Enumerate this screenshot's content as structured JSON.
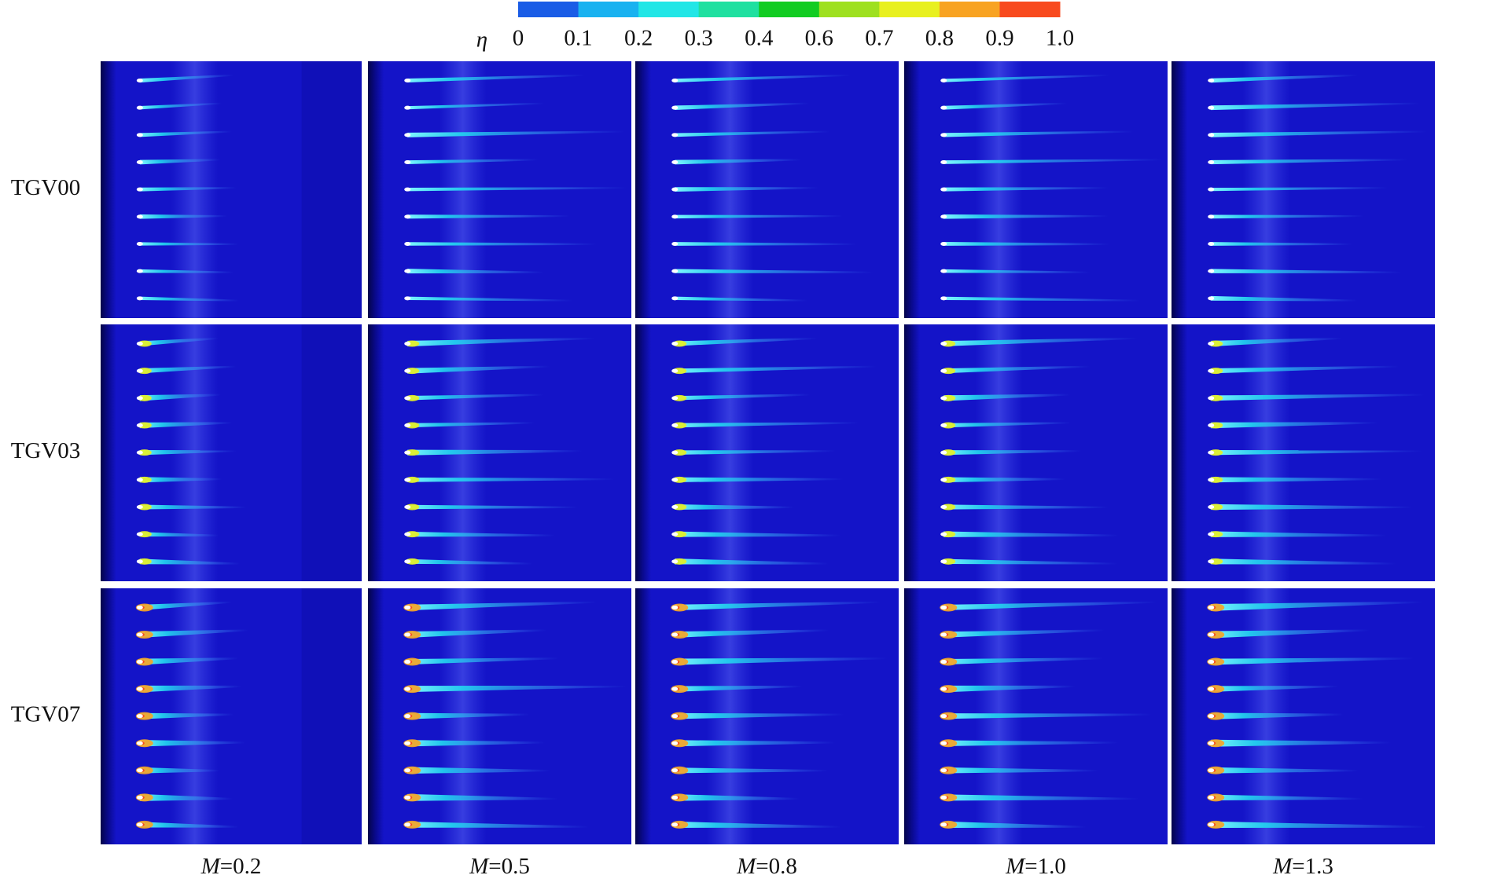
{
  "colorbar": {
    "symbol": "η",
    "colors": [
      "#1a5ce6",
      "#19b2f0",
      "#22e6e6",
      "#1fe0a0",
      "#12cc22",
      "#9ee020",
      "#e8f020",
      "#f8a322",
      "#f84a1e"
    ],
    "ticks": [
      "0",
      "0.1",
      "0.2",
      "0.3",
      "0.4",
      "0.6",
      "0.7",
      "0.8",
      "0.9",
      "1.0"
    ]
  },
  "rows": [
    "TGV00",
    "TGV03",
    "TGV07"
  ],
  "columns": [
    {
      "symbol": "M",
      "text": "=0.2"
    },
    {
      "symbol": "M",
      "text": "=0.5"
    },
    {
      "symbol": "M",
      "text": "=0.8"
    },
    {
      "symbol": "M",
      "text": "=1.0"
    },
    {
      "symbol": "M",
      "text": "=1.3"
    }
  ]
}
